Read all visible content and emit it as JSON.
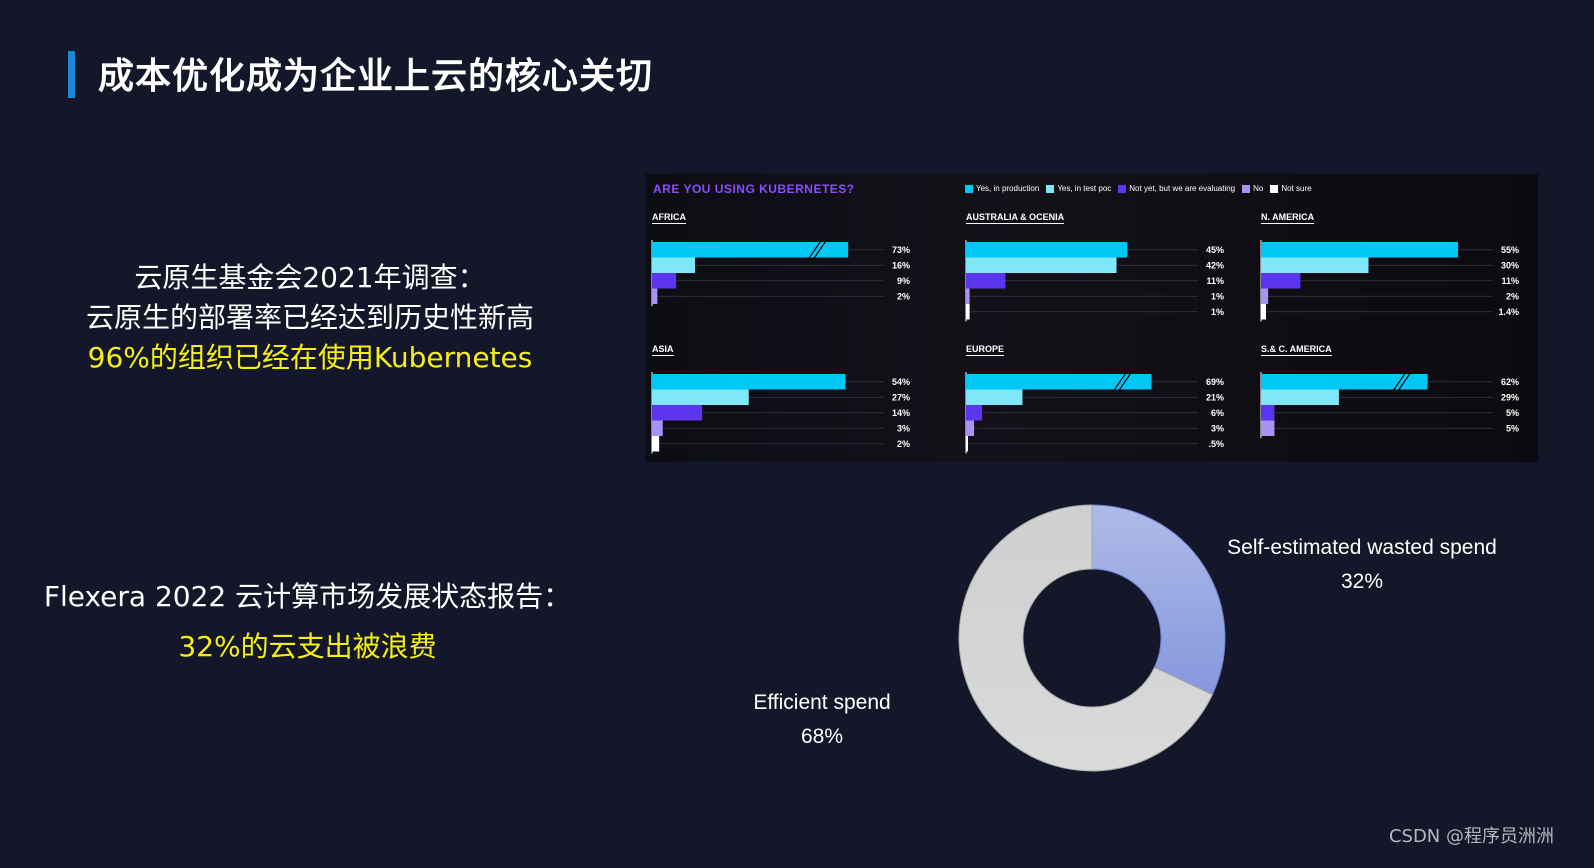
{
  "page": {
    "title": "成本优化成为企业上云的核心关切",
    "watermark": "CSDN @程序员洲洲"
  },
  "survey": {
    "line1": "云原生基金会2021年调查：",
    "line2": "云原生的部署率已经达到历史性新高",
    "highlight": "96%的组织已经在使用Kubernetes"
  },
  "flexera": {
    "line1": "Flexera 2022 云计算市场发展状态报告：",
    "highlight": "32%的云支出被浪费"
  },
  "colors": {
    "background": "#141729",
    "accent_bar": "#1b8ad6",
    "highlight": "#f5ef13",
    "production": "#00c8f5",
    "test_poc": "#80e6fa",
    "evaluating": "#5b35f0",
    "no": "#a892f2",
    "not_sure": "#ffffff",
    "wasted": "#98a9e6",
    "efficient": "#d0d0d0"
  },
  "chart_data": [
    {
      "type": "bar",
      "title": "ARE YOU USING KUBERNETES?",
      "legend": [
        "Yes, in production",
        "Yes, in test poc",
        "Not yet, but we are evaluating",
        "No",
        "Not sure"
      ],
      "regions": [
        {
          "name": "AFRICA",
          "values": [
            73,
            16,
            9,
            2
          ],
          "labels": [
            "73%",
            "16%",
            "9%",
            "2%"
          ],
          "broken_axis": true
        },
        {
          "name": "AUSTRALIA & OCENIA",
          "values": [
            45,
            42,
            11,
            1,
            1
          ],
          "labels": [
            "45%",
            "42%",
            "11%",
            "1%",
            "1%"
          ],
          "broken_axis": false
        },
        {
          "name": "N. AMERICA",
          "values": [
            55,
            30,
            11,
            2,
            1.4
          ],
          "labels": [
            "55%",
            "30%",
            "11%",
            "2%",
            "1.4%"
          ],
          "broken_axis": false
        },
        {
          "name": "ASIA",
          "values": [
            54,
            27,
            14,
            3,
            2
          ],
          "labels": [
            "54%",
            "27%",
            "14%",
            "3%",
            "2%"
          ],
          "broken_axis": false
        },
        {
          "name": "EUROPE",
          "values": [
            69,
            21,
            6,
            3,
            0.5
          ],
          "labels": [
            "69%",
            "21%",
            "6%",
            "3%",
            ".5%"
          ],
          "broken_axis": true
        },
        {
          "name": "S.& C. AMERICA",
          "values": [
            62,
            29,
            5,
            5
          ],
          "labels": [
            "62%",
            "29%",
            "5%",
            "5%"
          ],
          "broken_axis": true
        }
      ]
    },
    {
      "type": "pie",
      "donut": true,
      "slices": [
        {
          "label": "Self-estimated wasted spend",
          "value": 32,
          "value_label": "32%"
        },
        {
          "label": "Efficient spend",
          "value": 68,
          "value_label": "68%"
        }
      ]
    }
  ]
}
